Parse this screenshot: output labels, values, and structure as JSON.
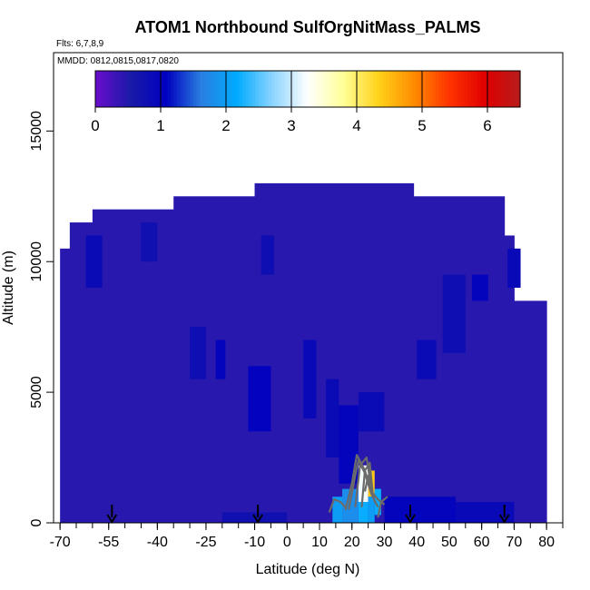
{
  "chart_data": {
    "type": "heatmap",
    "title": "ATOM1 Northbound SulfOrgNitMass_PALMS",
    "subtitle_flights": "Flts: 6,7,8,9",
    "subtitle_dates": "MMDD: 0812,0815,0817,0820",
    "xlabel": "Latitude (deg N)",
    "ylabel": "Altitude (m)",
    "xlim": [
      -72,
      85
    ],
    "ylim": [
      0,
      18000
    ],
    "x_ticks": [
      -70,
      -55,
      -40,
      -25,
      -10,
      0,
      10,
      20,
      30,
      40,
      50,
      60,
      70,
      80
    ],
    "y_ticks": [
      0,
      5000,
      10000,
      15000
    ],
    "colorbar": {
      "min": 0,
      "max": 6.5,
      "ticks": [
        0,
        1,
        2,
        3,
        4,
        5,
        6
      ],
      "colors": [
        "#6a0dcc",
        "#1a1aa8",
        "#0000c0",
        "#2a7fe0",
        "#00aaff",
        "#8ad4ff",
        "#ffffff",
        "#ffff99",
        "#ffd21a",
        "#ff8c00",
        "#ff3300",
        "#e00000",
        "#b71c1c"
      ]
    },
    "profile_arrows_lat": [
      -54,
      -9,
      38,
      67
    ],
    "field": {
      "background_value": 0.45,
      "data_envelope": [
        {
          "lat_from": -70,
          "lat_to": -67,
          "top": 10500
        },
        {
          "lat_from": -67,
          "lat_to": -60,
          "top": 11500
        },
        {
          "lat_from": -60,
          "lat_to": -35,
          "top": 12000
        },
        {
          "lat_from": -35,
          "lat_to": -10,
          "top": 12500
        },
        {
          "lat_from": -10,
          "lat_to": 39,
          "top": 13000
        },
        {
          "lat_from": 39,
          "lat_to": 67,
          "top": 12500
        },
        {
          "lat_from": 67,
          "lat_to": 70,
          "top": 11000
        },
        {
          "lat_from": 70,
          "lat_to": 80,
          "top": 8500
        }
      ],
      "patches": [
        {
          "lat": [
            -62,
            -57
          ],
          "alt": [
            9000,
            11000
          ],
          "value": 0.85
        },
        {
          "lat": [
            -45,
            -40
          ],
          "alt": [
            10000,
            11500
          ],
          "value": 0.75
        },
        {
          "lat": [
            -30,
            -25
          ],
          "alt": [
            5500,
            7500
          ],
          "value": 0.8
        },
        {
          "lat": [
            -22,
            -19
          ],
          "alt": [
            5500,
            7000
          ],
          "value": 1.0
        },
        {
          "lat": [
            -12,
            -5
          ],
          "alt": [
            3500,
            6000
          ],
          "value": 1.05
        },
        {
          "lat": [
            -8,
            -4
          ],
          "alt": [
            9500,
            11000
          ],
          "value": 0.8
        },
        {
          "lat": [
            5,
            9
          ],
          "alt": [
            4000,
            7000
          ],
          "value": 0.9
        },
        {
          "lat": [
            12,
            16
          ],
          "alt": [
            2500,
            5500
          ],
          "value": 0.85
        },
        {
          "lat": [
            16,
            22
          ],
          "alt": [
            1500,
            4500
          ],
          "value": 1.0
        },
        {
          "lat": [
            22,
            30
          ],
          "alt": [
            3500,
            5000
          ],
          "value": 0.85
        },
        {
          "lat": [
            40,
            46
          ],
          "alt": [
            5500,
            7000
          ],
          "value": 0.85
        },
        {
          "lat": [
            48,
            55
          ],
          "alt": [
            6500,
            9500
          ],
          "value": 0.8
        },
        {
          "lat": [
            57,
            62
          ],
          "alt": [
            8500,
            9500
          ],
          "value": 1.0
        },
        {
          "lat": [
            68,
            72
          ],
          "alt": [
            9000,
            10500
          ],
          "value": 0.9
        },
        {
          "lat": [
            30,
            52
          ],
          "alt": [
            0,
            1000
          ],
          "value": 1.0
        },
        {
          "lat": [
            52,
            70
          ],
          "alt": [
            0,
            800
          ],
          "value": 0.9
        },
        {
          "lat": [
            -20,
            0
          ],
          "alt": [
            0,
            400
          ],
          "value": 0.75
        },
        {
          "lat": [
            14,
            17
          ],
          "alt": [
            0,
            1000
          ],
          "value": 2.0
        },
        {
          "lat": [
            17,
            22
          ],
          "alt": [
            0,
            1300
          ],
          "value": 1.8
        },
        {
          "lat": [
            22,
            25
          ],
          "alt": [
            800,
            2200
          ],
          "value": 3.2
        },
        {
          "lat": [
            22,
            25
          ],
          "alt": [
            0,
            800
          ],
          "value": 2.2
        },
        {
          "lat": [
            25,
            27
          ],
          "alt": [
            1000,
            2000
          ],
          "value": 4.4
        },
        {
          "lat": [
            25,
            27
          ],
          "alt": [
            0,
            1000
          ],
          "value": 2.0
        },
        {
          "lat": [
            27,
            29
          ],
          "alt": [
            300,
            1300
          ],
          "value": 2.2
        }
      ]
    },
    "contours": [
      {
        "value": 1.5,
        "points": [
          [
            13,
            400
          ],
          [
            14.5,
            900
          ],
          [
            16.5,
            800
          ],
          [
            18,
            600
          ]
        ]
      },
      {
        "value": 1.5,
        "points": [
          [
            18,
            500
          ],
          [
            20,
            1500
          ],
          [
            21.5,
            2600
          ],
          [
            24,
            2000
          ],
          [
            26,
            1200
          ],
          [
            28,
            900
          ],
          [
            30,
            700
          ]
        ]
      },
      {
        "value": 2.0,
        "points": [
          [
            19,
            500
          ],
          [
            21,
            1800
          ],
          [
            22,
            2400
          ],
          [
            24,
            1900
          ],
          [
            26,
            1100
          ],
          [
            28,
            600
          ]
        ]
      },
      {
        "value": 2.5,
        "points": [
          [
            21,
            600
          ],
          [
            22.5,
            2200
          ],
          [
            24.5,
            2500
          ],
          [
            26,
            1300
          ],
          [
            27,
            800
          ]
        ]
      },
      {
        "value": 3.0,
        "points": [
          [
            23,
            600
          ],
          [
            24,
            2000
          ],
          [
            25.5,
            2300
          ],
          [
            26.5,
            1000
          ]
        ]
      },
      {
        "value": 3.5,
        "points": [
          [
            24,
            1200
          ],
          [
            25,
            1800
          ],
          [
            26,
            1300
          ]
        ]
      },
      {
        "value": 1.5,
        "points": [
          [
            28,
            200
          ],
          [
            29,
            800
          ],
          [
            31,
            1000
          ]
        ]
      }
    ]
  }
}
